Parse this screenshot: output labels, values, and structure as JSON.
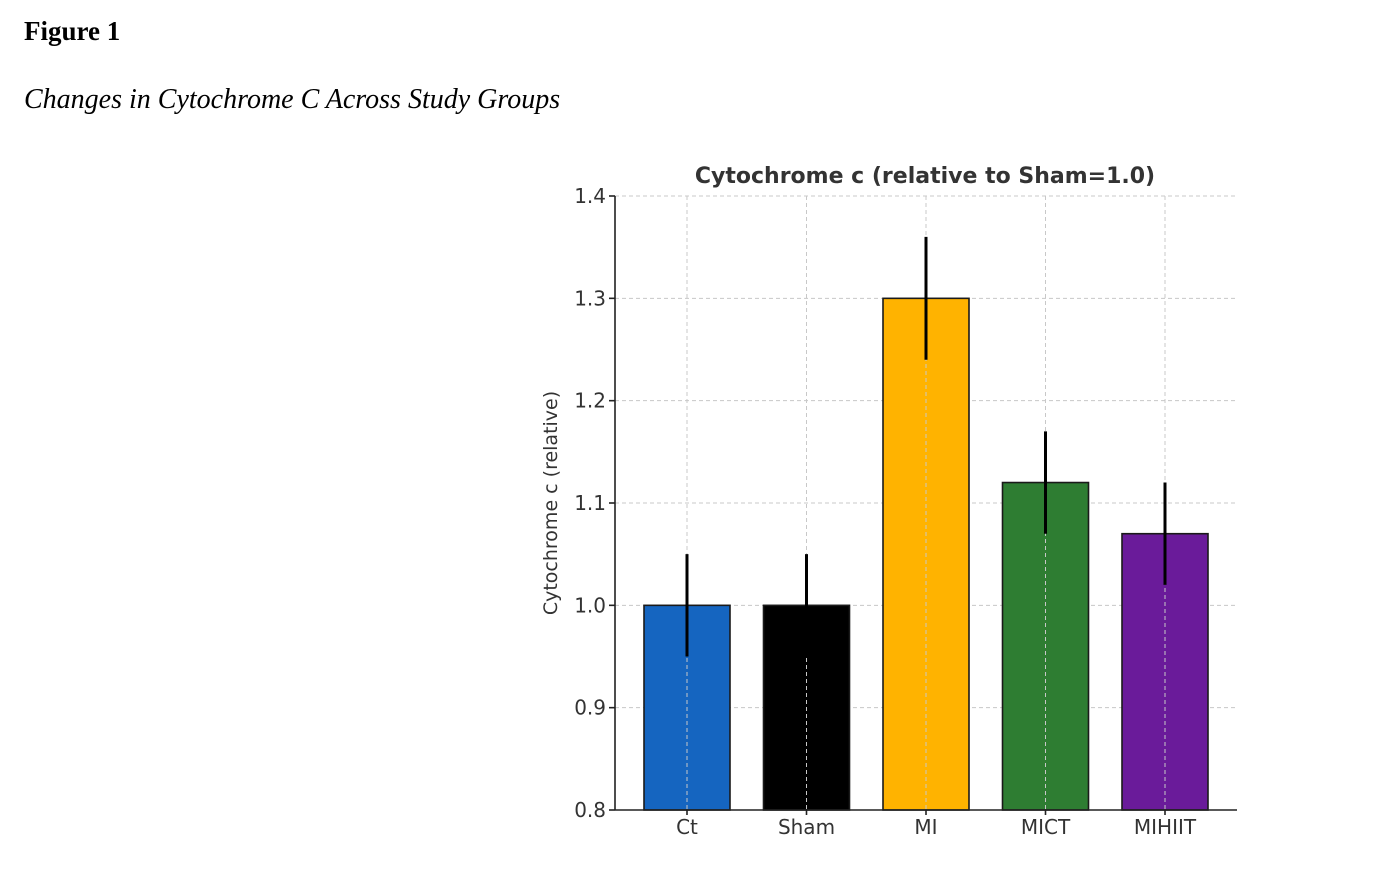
{
  "figure": {
    "label": "Figure 1",
    "caption": "Changes in Cytochrome C Across Study Groups"
  },
  "chart_data": {
    "type": "bar",
    "title": "Cytochrome c (relative to Sham=1.0)",
    "xlabel": "",
    "ylabel": "Cytochrome c (relative)",
    "ylim": [
      0.8,
      1.4
    ],
    "yticks": [
      "0.8",
      "0.9",
      "1.0",
      "1.1",
      "1.2",
      "1.3",
      "1.4"
    ],
    "grid": true,
    "categories": [
      "Ct",
      "Sham",
      "MI",
      "MICT",
      "MIHIIT"
    ],
    "values": [
      1.0,
      1.0,
      1.3,
      1.12,
      1.07
    ],
    "errors": [
      0.05,
      0.05,
      0.06,
      0.05,
      0.05
    ],
    "colors": [
      "#1565c0",
      "#000000",
      "#ffb300",
      "#2e7d32",
      "#6a1b9a"
    ]
  }
}
